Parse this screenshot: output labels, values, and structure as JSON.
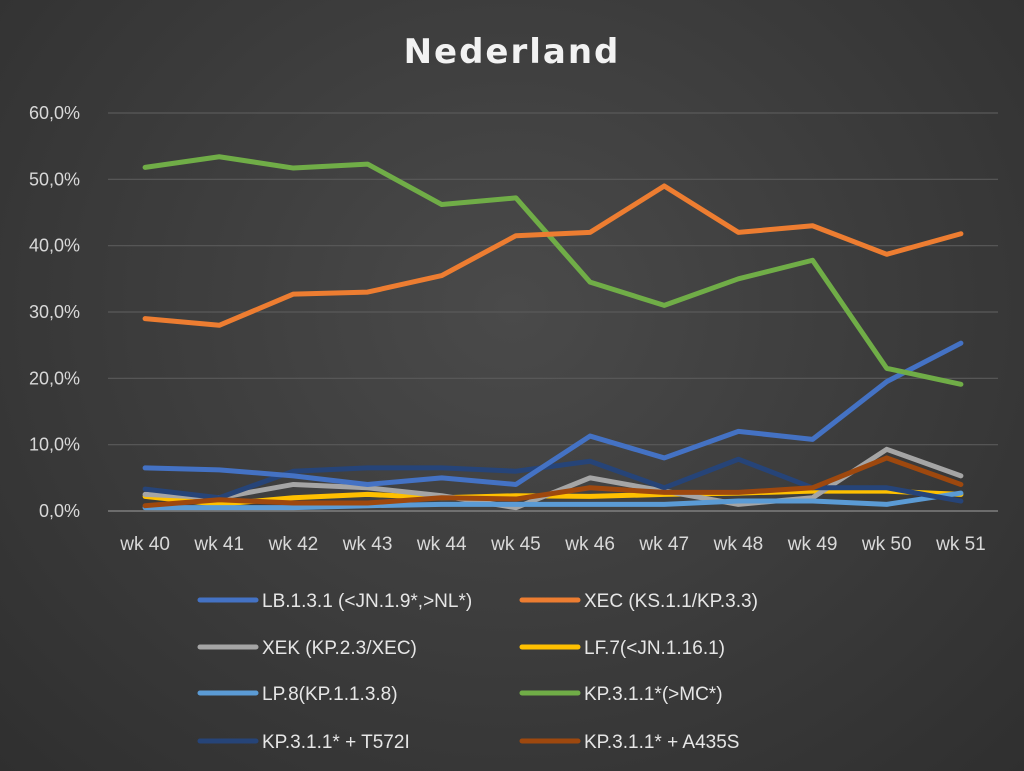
{
  "chart_data": {
    "type": "line",
    "title": "Nederland",
    "xlabel": "",
    "ylabel": "",
    "categories": [
      "wk 40",
      "wk 41",
      "wk 42",
      "wk 43",
      "wk 44",
      "wk 45",
      "wk 46",
      "wk 47",
      "wk 48",
      "wk 49",
      "wk 50",
      "wk 51"
    ],
    "ylim": [
      0,
      60
    ],
    "yticks": [
      "0,0%",
      "10,0%",
      "20,0%",
      "30,0%",
      "40,0%",
      "50,0%",
      "60,0%"
    ],
    "grid": true,
    "legend_position": "bottom",
    "series": [
      {
        "name": "LB.1.3.1 (<JN.1.9*,>NL*)",
        "color": "#4472c4",
        "values": [
          6.5,
          6.2,
          5.3,
          4.0,
          5.0,
          4.0,
          11.3,
          8.0,
          12.0,
          10.8,
          19.5,
          25.3
        ]
      },
      {
        "name": "XEC (KS.1.1/KP.3.3)",
        "color": "#ed7d31",
        "values": [
          29.0,
          28.0,
          32.7,
          33.0,
          35.5,
          41.5,
          42.0,
          49.0,
          42.0,
          43.0,
          38.7,
          41.8
        ]
      },
      {
        "name": "XEK (KP.2.3/XEC)",
        "color": "#a5a5a5",
        "values": [
          2.5,
          2.0,
          4.0,
          3.5,
          2.3,
          0.5,
          5.0,
          3.0,
          1.0,
          2.0,
          9.3,
          5.3
        ]
      },
      {
        "name": "LF.7(<JN.1.16.1)",
        "color": "#ffc000",
        "values": [
          2.2,
          1.0,
          2.0,
          2.5,
          2.0,
          2.3,
          2.2,
          2.5,
          2.7,
          3.0,
          3.0,
          2.5
        ]
      },
      {
        "name": "LP.8(KP.1.1.3.8)",
        "color": "#5b9bd5",
        "values": [
          0.5,
          0.5,
          0.5,
          0.8,
          1.0,
          1.0,
          1.0,
          1.0,
          1.5,
          1.5,
          1.0,
          2.7
        ]
      },
      {
        "name": "KP.3.1.1*(>MC*)",
        "color": "#70ad47",
        "values": [
          51.8,
          53.4,
          51.7,
          52.3,
          46.2,
          47.2,
          34.5,
          31.0,
          35.0,
          37.8,
          21.5,
          19.1
        ]
      },
      {
        "name": "KP.3.1.1* + T572I",
        "color": "#264478",
        "values": [
          3.3,
          2.0,
          6.0,
          6.5,
          6.5,
          6.0,
          7.5,
          3.5,
          7.8,
          3.5,
          3.5,
          1.5
        ]
      },
      {
        "name": "KP.3.1.1* + A435S",
        "color": "#9e480e",
        "values": [
          0.8,
          1.7,
          1.2,
          1.2,
          2.0,
          1.8,
          3.5,
          2.8,
          2.8,
          3.5,
          8.0,
          4.0
        ]
      }
    ]
  }
}
